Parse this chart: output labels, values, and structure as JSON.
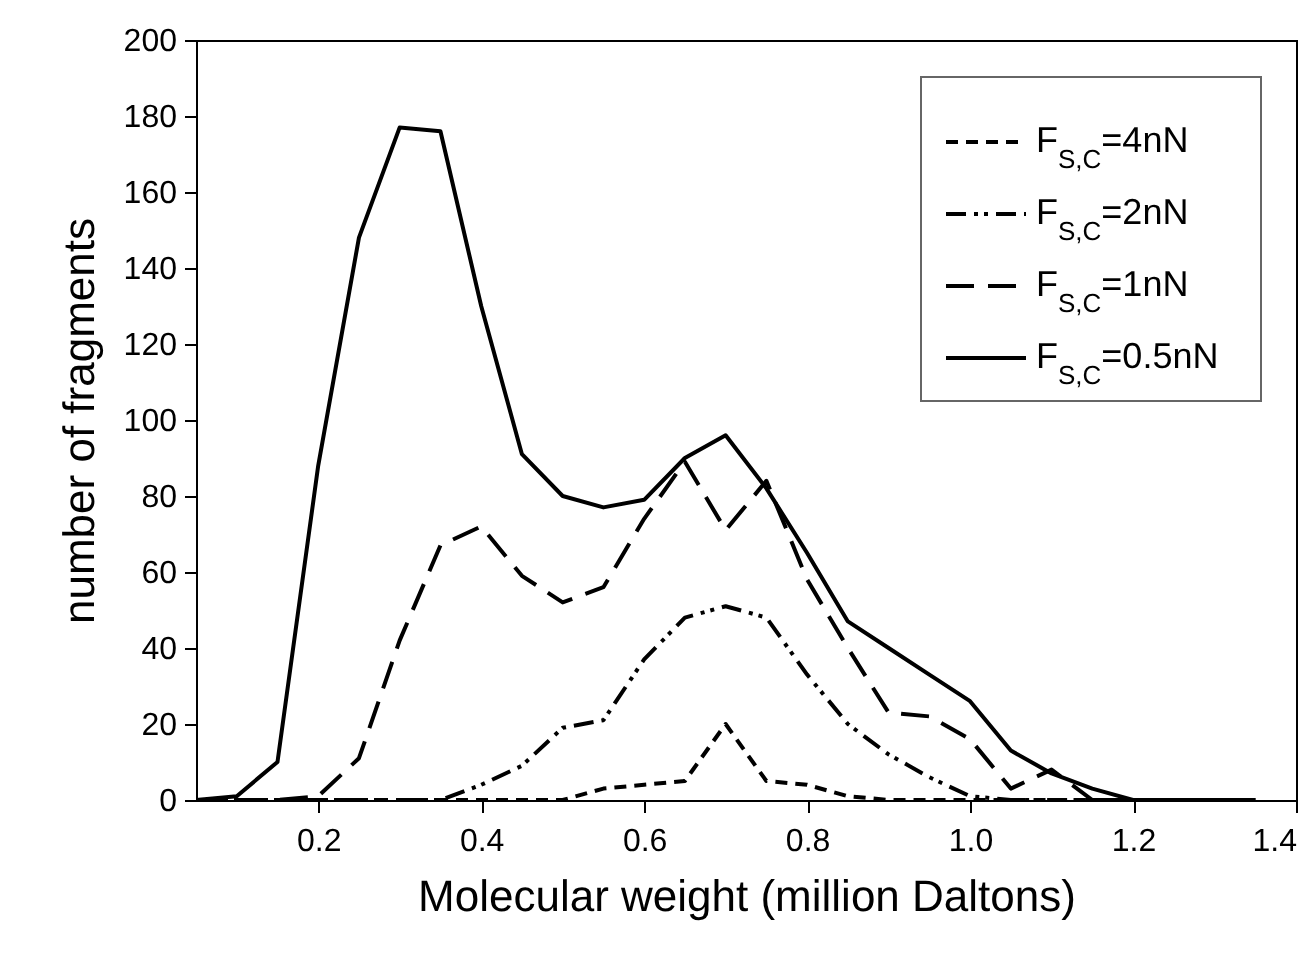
{
  "chart_data": {
    "type": "line",
    "xlabel": "Molecular weight (million Daltons)",
    "ylabel": "number of fragments",
    "x": [
      0.05,
      0.1,
      0.15,
      0.2,
      0.25,
      0.3,
      0.35,
      0.4,
      0.45,
      0.5,
      0.55,
      0.6,
      0.65,
      0.7,
      0.75,
      0.8,
      0.85,
      0.9,
      0.95,
      1.0,
      1.05,
      1.1,
      1.15,
      1.2,
      1.25,
      1.3,
      1.35
    ],
    "series": [
      {
        "name": "F$_{S,C}$=4nN",
        "color": "#000000",
        "line_style": "dotted",
        "values": [
          0,
          0,
          0,
          0,
          0,
          0,
          0,
          0,
          0,
          0,
          3,
          4,
          5,
          20,
          5,
          4,
          1,
          0,
          0,
          0,
          0,
          0,
          0,
          0,
          0,
          0,
          0
        ]
      },
      {
        "name": "F$_{S,C}$=2nN",
        "color": "#000000",
        "line_style": "dashdot",
        "values": [
          0,
          0,
          0,
          0,
          0,
          0,
          0,
          4,
          9,
          19,
          21,
          37,
          48,
          51,
          48,
          33,
          20,
          12,
          6,
          1,
          0,
          0,
          0,
          0,
          0,
          0,
          0
        ]
      },
      {
        "name": "F$_{S,C}$=1nN",
        "color": "#000000",
        "line_style": "dashed",
        "values": [
          0,
          0,
          0,
          1,
          11,
          42,
          67,
          72,
          59,
          52,
          56,
          74,
          89,
          71,
          84,
          58,
          40,
          23,
          22,
          16,
          3,
          8,
          0,
          0,
          0,
          0,
          0
        ]
      },
      {
        "name": "F$_{S,C}$=0.5nN",
        "color": "#000000",
        "line_style": "solid",
        "values": [
          0,
          1,
          10,
          88,
          148,
          177,
          176,
          130,
          91,
          80,
          77,
          79,
          90,
          96,
          82,
          65,
          47,
          40,
          33,
          26,
          13,
          7,
          3,
          0,
          0,
          0,
          0
        ]
      }
    ],
    "xlim": [
      0.05,
      1.4
    ],
    "xticks": [
      0.2,
      0.4,
      0.6,
      0.8,
      {
        "value": 1,
        "label": "1.0"
      },
      1.2,
      1.4
    ],
    "ylim": [
      0,
      200
    ],
    "yticks": [
      0,
      20,
      40,
      60,
      80,
      100,
      120,
      140,
      160,
      180,
      200
    ],
    "grid": false,
    "legend": "top right",
    "marker": "none"
  }
}
